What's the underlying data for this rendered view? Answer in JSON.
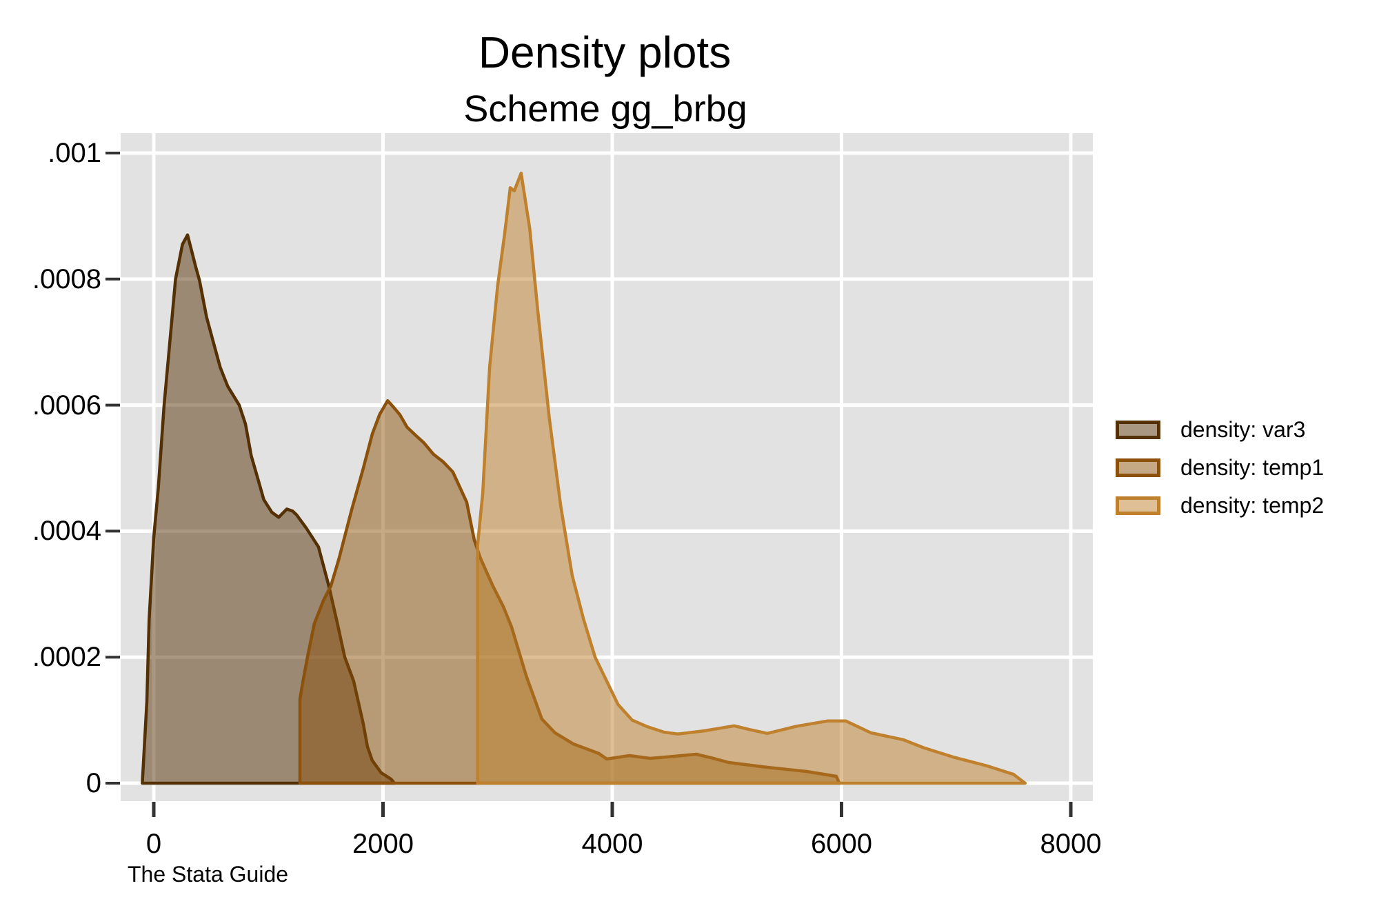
{
  "title": "Density plots",
  "subtitle": "Scheme gg_brbg",
  "caption": "The Stata Guide",
  "colors": {
    "plot_background": "#e2e2e2",
    "gridline": "#ffffff",
    "tick": "#333333",
    "text": "#000000",
    "series_var3": "#543005",
    "series_temp1": "#8c510a",
    "series_temp2": "#bf812d"
  },
  "legend": {
    "items": [
      {
        "label": "density: var3",
        "stroke": "#543005"
      },
      {
        "label": "density: temp1",
        "stroke": "#8c510a"
      },
      {
        "label": "density: temp2",
        "stroke": "#bf812d"
      }
    ]
  },
  "x_axis": {
    "tick_labels": [
      "0",
      "2000",
      "4000",
      "6000",
      "8000"
    ],
    "tick_values": [
      0,
      2000,
      4000,
      6000,
      8000
    ]
  },
  "y_axis": {
    "tick_labels": [
      "0",
      ".0002",
      ".0004",
      ".0006",
      ".0008",
      ".001"
    ],
    "tick_values": [
      0,
      0.0002,
      0.0004,
      0.0006,
      0.0008,
      0.001
    ]
  },
  "chart_data": {
    "type": "area",
    "subtype": "kernel-density",
    "title": "Density plots",
    "subtitle": "Scheme gg_brbg",
    "xlabel": "",
    "ylabel": "",
    "xlim": [
      -300,
      8200
    ],
    "ylim": [
      0,
      0.001
    ],
    "grid": true,
    "legend_position": "right",
    "fill_opacity": 0.5,
    "series": [
      {
        "name": "density: var3",
        "color": "#543005",
        "points": [
          [
            -100,
            0
          ],
          [
            -60,
            0.00013
          ],
          [
            -40,
            0.00026
          ],
          [
            0,
            0.00039
          ],
          [
            40,
            0.00047
          ],
          [
            90,
            0.0006
          ],
          [
            140,
            0.0007
          ],
          [
            190,
            0.0008
          ],
          [
            250,
            0.000855
          ],
          [
            295,
            0.00087
          ],
          [
            330,
            0.000845
          ],
          [
            365,
            0.00082
          ],
          [
            400,
            0.000797
          ],
          [
            460,
            0.00074
          ],
          [
            520,
            0.0007
          ],
          [
            580,
            0.00066
          ],
          [
            645,
            0.00063
          ],
          [
            745,
            0.0006
          ],
          [
            800,
            0.00057
          ],
          [
            850,
            0.00052
          ],
          [
            905,
            0.000485
          ],
          [
            960,
            0.00045
          ],
          [
            1030,
            0.00043
          ],
          [
            1090,
            0.000422
          ],
          [
            1160,
            0.000435
          ],
          [
            1210,
            0.000432
          ],
          [
            1245,
            0.000426
          ],
          [
            1330,
            0.000405
          ],
          [
            1437,
            0.000375
          ],
          [
            1527,
            0.000313
          ],
          [
            1600,
            0.000255
          ],
          [
            1666,
            0.0002
          ],
          [
            1744,
            0.000162
          ],
          [
            1828,
            9.4e-05
          ],
          [
            1864,
            5.8e-05
          ],
          [
            1906,
            3.6e-05
          ],
          [
            1984,
            1.65e-05
          ],
          [
            2069,
            6.6e-06
          ],
          [
            2100,
            0
          ]
        ]
      },
      {
        "name": "density: temp1",
        "color": "#8c510a",
        "points": [
          [
            1275,
            0
          ],
          [
            1275,
            0.000133
          ],
          [
            1300,
            0.00016
          ],
          [
            1341,
            0.0002
          ],
          [
            1400,
            0.000253
          ],
          [
            1480,
            0.00029
          ],
          [
            1545,
            0.000313
          ],
          [
            1617,
            0.000357
          ],
          [
            1725,
            0.000433
          ],
          [
            1827,
            0.000499
          ],
          [
            1906,
            0.000554
          ],
          [
            1970,
            0.000585
          ],
          [
            2040,
            0.000607
          ],
          [
            2090,
            0.000597
          ],
          [
            2146,
            0.000585
          ],
          [
            2210,
            0.000565
          ],
          [
            2285,
            0.000552
          ],
          [
            2357,
            0.00054
          ],
          [
            2440,
            0.000522
          ],
          [
            2525,
            0.00051
          ],
          [
            2609,
            0.000494
          ],
          [
            2730,
            0.000446
          ],
          [
            2796,
            0.000386
          ],
          [
            2850,
            0.000357
          ],
          [
            2958,
            0.000313
          ],
          [
            3050,
            0.00028
          ],
          [
            3121,
            0.000248
          ],
          [
            3250,
            0.00017
          ],
          [
            3385,
            0.000102
          ],
          [
            3500,
            8e-05
          ],
          [
            3661,
            6.22e-05
          ],
          [
            3883,
            4.72e-05
          ],
          [
            3951,
            3.84e-05
          ],
          [
            4150,
            4.38e-05
          ],
          [
            4330,
            3.94e-05
          ],
          [
            4500,
            4.2e-05
          ],
          [
            4733,
            4.6e-05
          ],
          [
            4870,
            4e-05
          ],
          [
            5016,
            3.28e-05
          ],
          [
            5353,
            2.52e-05
          ],
          [
            5695,
            1.86e-05
          ],
          [
            5954,
            1.09e-05
          ],
          [
            5980,
            0
          ]
        ]
      },
      {
        "name": "density: temp2",
        "color": "#bf812d",
        "points": [
          [
            2825,
            0
          ],
          [
            2825,
            0.000378
          ],
          [
            2870,
            0.00046
          ],
          [
            2930,
            0.00066
          ],
          [
            3000,
            0.00079
          ],
          [
            3060,
            0.00087
          ],
          [
            3110,
            0.000945
          ],
          [
            3145,
            0.00094
          ],
          [
            3205,
            0.000968
          ],
          [
            3280,
            0.00088
          ],
          [
            3350,
            0.00075
          ],
          [
            3450,
            0.00058
          ],
          [
            3550,
            0.00044
          ],
          [
            3650,
            0.00033
          ],
          [
            3750,
            0.00026
          ],
          [
            3850,
            0.0002
          ],
          [
            3951,
            0.000162
          ],
          [
            4050,
            0.000125
          ],
          [
            4174,
            0.0001
          ],
          [
            4300,
            9e-05
          ],
          [
            4451,
            8.1e-05
          ],
          [
            4571,
            7.8e-05
          ],
          [
            4800,
            8.3e-05
          ],
          [
            5064,
            9.1e-05
          ],
          [
            5200,
            8.5e-05
          ],
          [
            5353,
            7.9e-05
          ],
          [
            5600,
            9e-05
          ],
          [
            5876,
            9.87e-05
          ],
          [
            6038,
            9.87e-05
          ],
          [
            6255,
            8e-05
          ],
          [
            6537,
            6.9e-05
          ],
          [
            6717,
            5.62e-05
          ],
          [
            6970,
            4.17e-05
          ],
          [
            7271,
            2.74e-05
          ],
          [
            7500,
            1.4e-05
          ],
          [
            7602,
            0
          ]
        ]
      }
    ]
  }
}
